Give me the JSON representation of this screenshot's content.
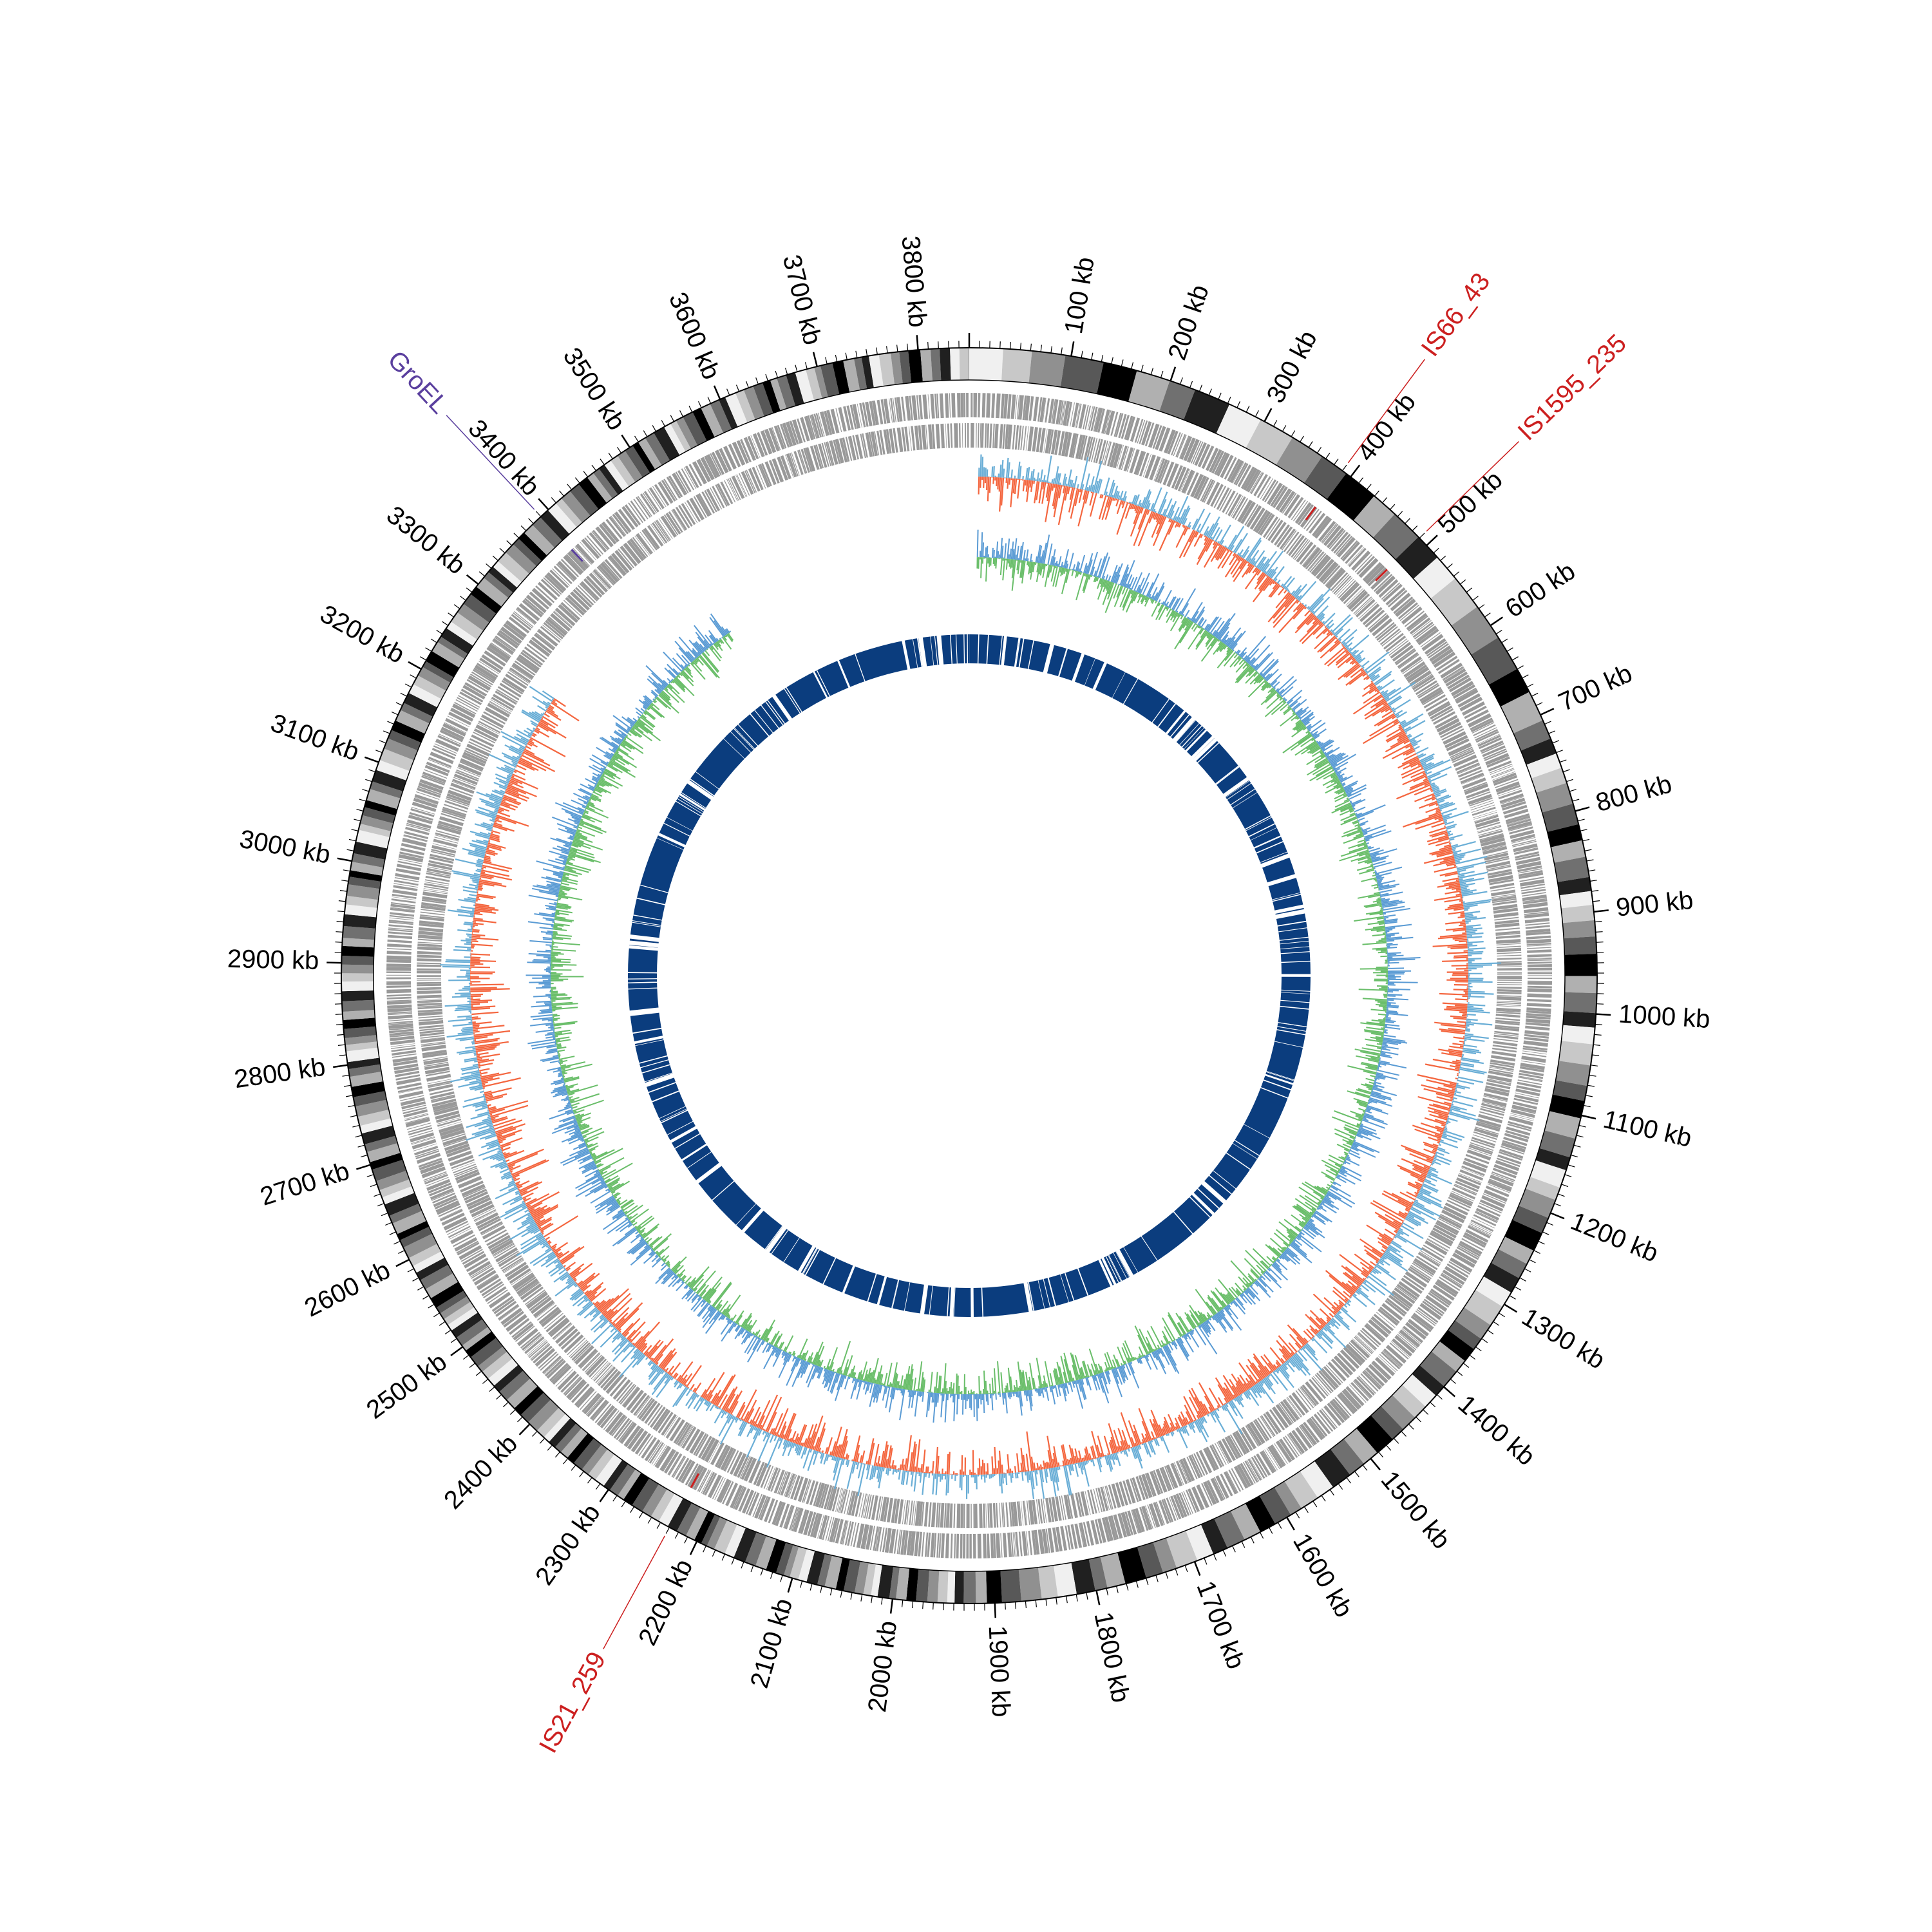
{
  "figure": {
    "type": "circular-genome-map",
    "genome_length_kb": 3850,
    "tick_interval_kb": 100,
    "tick_labels": [
      "100 kb",
      "200 kb",
      "300 kb",
      "400 kb",
      "500 kb",
      "600 kb",
      "700 kb",
      "800 kb",
      "900 kb",
      "1000 kb",
      "1100 kb",
      "1200 kb",
      "1300 kb",
      "1400 kb",
      "1500 kb",
      "1600 kb",
      "1700 kb",
      "1800 kb",
      "1900 kb",
      "2000 kb",
      "2100 kb",
      "2200 kb",
      "2300 kb",
      "2400 kb",
      "2500 kb",
      "2600 kb",
      "2700 kb",
      "2800 kb",
      "2900 kb",
      "3000 kb",
      "3100 kb",
      "3200 kb",
      "3300 kb",
      "3400 kb",
      "3500 kb",
      "3600 kb",
      "3700 kb",
      "3800 kb"
    ],
    "tracks": [
      {
        "name": "chromosome-ideogram",
        "style": "grayscale bands"
      },
      {
        "name": "genes",
        "color": "#999999"
      },
      {
        "name": "signal-blue-outer",
        "color": "#6aaed6"
      },
      {
        "name": "signal-red",
        "color": "#f4663f"
      },
      {
        "name": "signal-blue-inner",
        "color": "#5a9bd4"
      },
      {
        "name": "signal-green",
        "color": "#6abe6a"
      },
      {
        "name": "features-inner",
        "color": "#0b3d7e"
      }
    ],
    "annotations": [
      {
        "label": "IS66_43",
        "position_kb": 390,
        "color": "#cc1f1f"
      },
      {
        "label": "IS1595_235",
        "position_kb": 490,
        "color": "#cc1f1f"
      },
      {
        "label": "IS21_259",
        "position_kb": 2230,
        "color": "#cc1f1f"
      },
      {
        "label": "GroEL",
        "position_kb": 3390,
        "color": "#5a3f9e"
      }
    ]
  }
}
